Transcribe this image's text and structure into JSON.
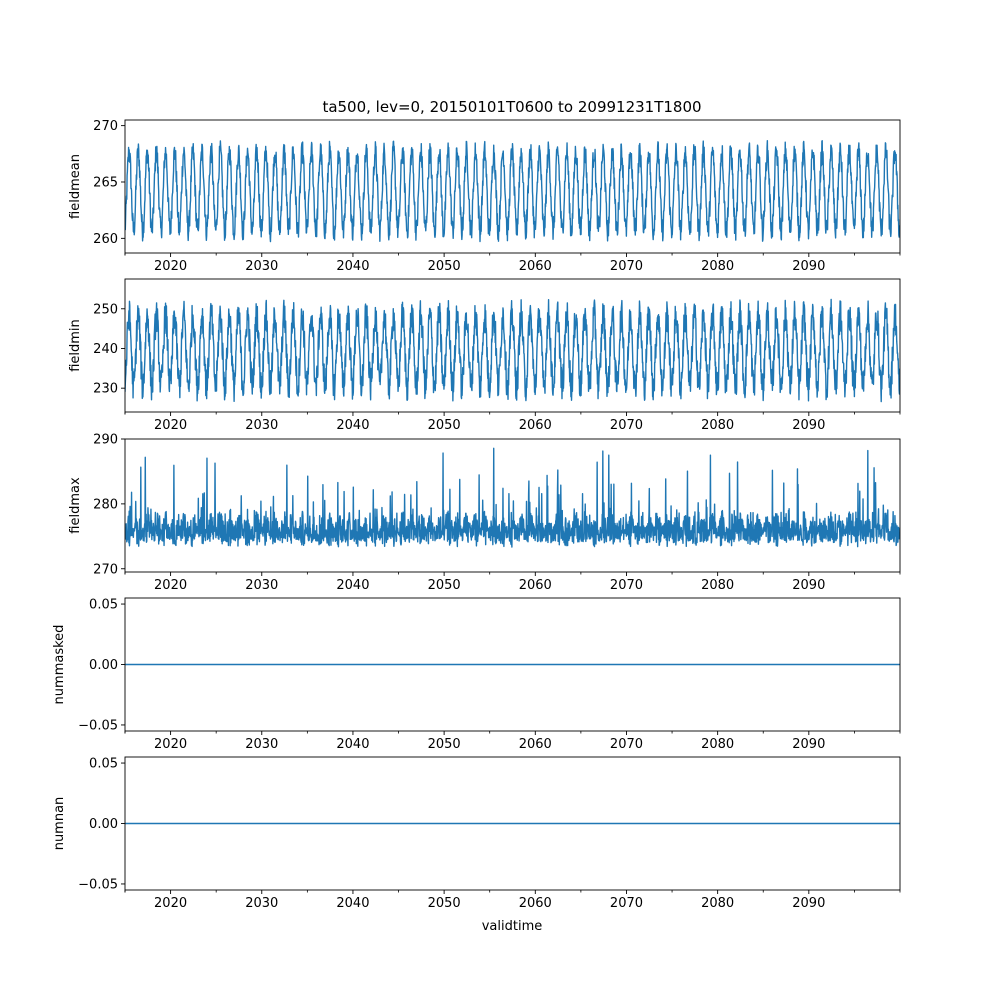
{
  "chart_data": {
    "type": "line",
    "title": "ta500, lev=0, 20150101T0600 to 20991231T1800",
    "xlabel": "validtime",
    "xlim": [
      2015.0,
      2100.0
    ],
    "xticks": [
      2020,
      2030,
      2040,
      2050,
      2060,
      2070,
      2080,
      2090
    ],
    "xtick_labels": [
      "2020",
      "2030",
      "2040",
      "2050",
      "2060",
      "2070",
      "2080",
      "2090"
    ],
    "line_color": "#1f77b4",
    "panels": [
      {
        "ylabel": "fieldmean",
        "ylim": [
          258.7,
          270.5
        ],
        "yticks": [
          260,
          265,
          270
        ],
        "ytick_labels": [
          "260",
          "265",
          "270"
        ],
        "series": {
          "kind": "seasonal",
          "center": 264.2,
          "amplitude": 3.5,
          "noise": 1.0,
          "min": 259.0,
          "max": 270.0
        }
      },
      {
        "ylabel": "fieldmin",
        "ylim": [
          224.0,
          257.5
        ],
        "yticks": [
          230,
          240,
          250
        ],
        "ytick_labels": [
          "230",
          "240",
          "250"
        ],
        "series": {
          "kind": "seasonal",
          "center": 239.5,
          "amplitude": 9.0,
          "noise": 4.0,
          "min": 225.0,
          "max": 256.0
        }
      },
      {
        "ylabel": "fieldmax",
        "ylim": [
          269.5,
          290.0
        ],
        "yticks": [
          270,
          280,
          290
        ],
        "ytick_labels": [
          "270",
          "280",
          "290"
        ],
        "series": {
          "kind": "spiky",
          "base": 275.0,
          "spread": 2.8,
          "min": 270.5,
          "max": 289.0
        }
      },
      {
        "ylabel": "nummasked",
        "ylim": [
          -0.055,
          0.055
        ],
        "yticks": [
          -0.05,
          0.0,
          0.05
        ],
        "ytick_labels": [
          "−0.05",
          "0.00",
          "0.05"
        ],
        "series": {
          "kind": "constant",
          "value": 0.0
        }
      },
      {
        "ylabel": "numnan",
        "ylim": [
          -0.055,
          0.055
        ],
        "yticks": [
          -0.05,
          0.0,
          0.05
        ],
        "ytick_labels": [
          "−0.05",
          "0.00",
          "0.05"
        ],
        "series": {
          "kind": "constant",
          "value": 0.0
        }
      }
    ]
  }
}
